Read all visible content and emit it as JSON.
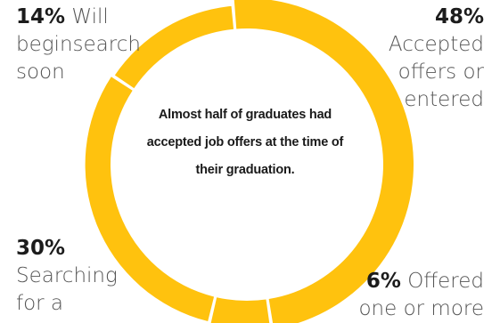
{
  "chart_data": {
    "type": "pie",
    "style": "donut",
    "center_text": "Almost half of graduates had accepted job offers at the time of their graduation.",
    "slices": [
      {
        "value": 48,
        "percent_label": "48%",
        "label": "Accepted offers or entered",
        "color": "#FFC20E"
      },
      {
        "value": 6,
        "percent_label": "6%",
        "label": "Offered one or more",
        "color": "#FFC20E"
      },
      {
        "value": 30,
        "percent_label": "30%",
        "label": "Searching for a",
        "color": "#FFC20E"
      },
      {
        "value": 14,
        "percent_label": "14%",
        "label": "Will beginsearch soon",
        "color": "#FFC20E"
      }
    ]
  },
  "colors": {
    "accent": "#FFC20E",
    "background": "#FFFFFF",
    "label_text": "#555555",
    "percent_text": "#1C1C1C"
  }
}
